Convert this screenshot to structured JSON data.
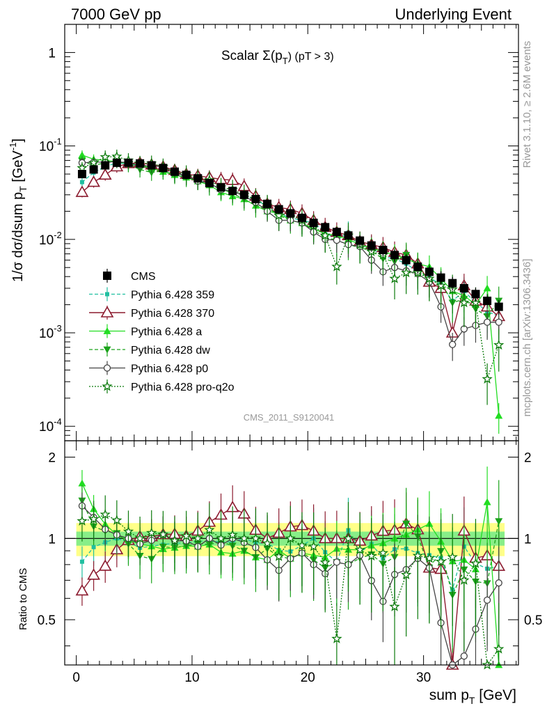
{
  "header": {
    "left": "7000 GeV pp",
    "right": "Underlying Event"
  },
  "title": {
    "main": "Scalar Σ(p",
    "sub": "T",
    "rest": ") (pT >  3)"
  },
  "side_labels": {
    "rivet": "Rivet 3.1.10, ≥ 2.6M events",
    "mcplots": "mcplots.cern.ch [arXiv:1306.3436]"
  },
  "analysis_tag": "CMS_2011_S9120041",
  "y_axis": {
    "upper_label": "1/σ dσ/dsum p",
    "upper_sub": "T",
    "upper_unit": " [GeV",
    "upper_sup": "-1",
    "upper_close": "]",
    "lower_label": "Ratio to CMS"
  },
  "x_axis": {
    "label": "sum p",
    "sub": "T",
    "unit": " [GeV]"
  },
  "upper_ticks": [
    "1",
    "10",
    "10",
    "10",
    "10"
  ],
  "upper_tick_exps": [
    "",
    "-1",
    "-2",
    "-3",
    "-4"
  ],
  "lower_ticks": [
    "2",
    "1",
    "0.5"
  ],
  "x_ticks": [
    "0",
    "10",
    "20",
    "30"
  ],
  "colors": {
    "cms": "#000000",
    "p359": "#1fbfa0",
    "p370": "#8b1a2e",
    "pa": "#22dd22",
    "pdw": "#1aa31a",
    "pp0": "#444444",
    "pq2o": "#0b7a0b",
    "band_yellow": "#ffff88",
    "band_green": "#88ee88"
  },
  "chart_data": {
    "type": "scatter",
    "x_range": [
      -1,
      38.2
    ],
    "y_range_upper": [
      7e-05,
      2.0
    ],
    "y_scale_upper": "log",
    "y_range_lower": [
      0.34,
      2.3
    ],
    "y_scale_lower": "log",
    "legend_position": "middle-left",
    "x": [
      0.5,
      1.5,
      2.5,
      3.5,
      4.5,
      5.5,
      6.5,
      7.5,
      8.5,
      9.5,
      10.5,
      11.5,
      12.5,
      13.5,
      14.5,
      15.5,
      16.5,
      17.5,
      18.5,
      19.5,
      20.5,
      21.5,
      22.5,
      23.5,
      24.5,
      25.5,
      26.5,
      27.5,
      28.5,
      29.5,
      30.5,
      31.5,
      32.5,
      33.5,
      34.5,
      35.5,
      36.5
    ],
    "series": [
      {
        "name": "CMS",
        "key": "cms",
        "values": [
          0.05,
          0.056,
          0.062,
          0.066,
          0.066,
          0.065,
          0.062,
          0.058,
          0.053,
          0.049,
          0.045,
          0.04,
          0.036,
          0.033,
          0.03,
          0.027,
          0.024,
          0.021,
          0.019,
          0.017,
          0.015,
          0.0135,
          0.012,
          0.011,
          0.0097,
          0.0086,
          0.0077,
          0.0068,
          0.006,
          0.0051,
          0.0045,
          0.0039,
          0.0034,
          0.003,
          0.0026,
          0.0022,
          0.0019
        ]
      },
      {
        "name": "Pythia 6.428 359",
        "key": "p359",
        "values": [
          0.041,
          0.052,
          0.06,
          0.066,
          0.064,
          0.06,
          0.058,
          0.055,
          0.051,
          0.047,
          0.044,
          0.039,
          0.035,
          0.032,
          0.03,
          0.026,
          0.023,
          0.019,
          0.017,
          0.016,
          0.015,
          0.012,
          0.0098,
          0.0118,
          0.0086,
          0.0082,
          0.0065,
          0.0062,
          0.0055,
          0.0045,
          0.0039,
          0.0033,
          0.0022,
          0.0028,
          0.0021,
          0.0017,
          0.0015
        ]
      },
      {
        "name": "Pythia 6.428 370",
        "key": "p370",
        "values": [
          0.032,
          0.041,
          0.049,
          0.06,
          0.065,
          0.066,
          0.063,
          0.06,
          0.055,
          0.05,
          0.048,
          0.046,
          0.044,
          0.043,
          0.037,
          0.029,
          0.024,
          0.022,
          0.021,
          0.019,
          0.016,
          0.0135,
          0.012,
          0.011,
          0.0095,
          0.0088,
          0.0082,
          0.0073,
          0.0068,
          0.0055,
          0.0035,
          0.003,
          0.001,
          0.0032,
          0.0022,
          0.0019,
          0.0015
        ]
      },
      {
        "name": "Pythia 6.428 a",
        "key": "pa",
        "values": [
          0.08,
          0.072,
          0.07,
          0.068,
          0.065,
          0.062,
          0.058,
          0.053,
          0.049,
          0.046,
          0.042,
          0.038,
          0.032,
          0.029,
          0.027,
          0.023,
          0.02,
          0.019,
          0.016,
          0.015,
          0.013,
          0.0115,
          0.011,
          0.01,
          0.0088,
          0.0081,
          0.0074,
          0.0068,
          0.0062,
          0.0055,
          0.0051,
          0.0038,
          0.0028,
          0.0025,
          0.002,
          0.003,
          0.00013
        ]
      },
      {
        "name": "Pythia 6.428 dw",
        "key": "pdw",
        "values": [
          0.069,
          0.062,
          0.066,
          0.069,
          0.063,
          0.056,
          0.052,
          0.054,
          0.049,
          0.046,
          0.043,
          0.038,
          0.035,
          0.031,
          0.027,
          0.023,
          0.022,
          0.018,
          0.016,
          0.015,
          0.0125,
          0.0105,
          0.0098,
          0.0088,
          0.0082,
          0.0075,
          0.0062,
          0.0058,
          0.0068,
          0.0052,
          0.0035,
          0.0035,
          0.0021,
          0.0023,
          0.0018,
          0.0015,
          0.0022
        ]
      },
      {
        "name": "Pythia 6.428 p0",
        "key": "pp0",
        "values": [
          0.066,
          0.067,
          0.067,
          0.068,
          0.066,
          0.062,
          0.061,
          0.06,
          0.052,
          0.048,
          0.042,
          0.04,
          0.034,
          0.033,
          0.029,
          0.025,
          0.02,
          0.016,
          0.016,
          0.015,
          0.012,
          0.01,
          0.0098,
          0.0088,
          0.0084,
          0.006,
          0.0045,
          0.005,
          0.0046,
          0.0043,
          0.0035,
          0.0019,
          0.00075,
          0.0011,
          0.0012,
          0.0013,
          0.0013
        ]
      },
      {
        "name": "Pythia 6.428 pro-q2o",
        "key": "pq2o",
        "values": [
          0.058,
          0.066,
          0.076,
          0.077,
          0.07,
          0.065,
          0.065,
          0.06,
          0.052,
          0.05,
          0.045,
          0.043,
          0.036,
          0.034,
          0.03,
          0.027,
          0.023,
          0.018,
          0.019,
          0.016,
          0.014,
          0.011,
          0.0051,
          0.011,
          0.0088,
          0.0074,
          0.0068,
          0.0038,
          0.0044,
          0.0044,
          0.0038,
          0.0032,
          0.0029,
          0.0021,
          0.0021,
          0.00032,
          0.00074
        ]
      }
    ],
    "ratio_band": {
      "yellow": [
        0.86,
        1.14
      ],
      "green": [
        0.94,
        1.06
      ]
    }
  }
}
